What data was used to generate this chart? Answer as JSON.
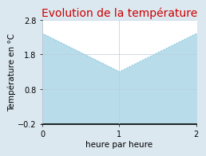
{
  "title": "Evolution de la température",
  "xlabel": "heure par heure",
  "ylabel": "Température en °C",
  "x": [
    0,
    1,
    2
  ],
  "y": [
    2.4,
    1.3,
    2.4
  ],
  "ylim": [
    -0.2,
    2.8
  ],
  "xlim": [
    0,
    2
  ],
  "xticks": [
    0,
    1,
    2
  ],
  "yticks": [
    -0.2,
    0.8,
    1.8,
    2.8
  ],
  "line_color": "#88ccdd",
  "fill_color": "#b8dcea",
  "title_color": "#cc0000",
  "bg_color": "#dce8f0",
  "plot_bg_color": "#dce8f0",
  "plot_white_color": "#ffffff",
  "grid_color": "#bbccdd",
  "title_fontsize": 10,
  "label_fontsize": 7.5,
  "tick_fontsize": 7
}
